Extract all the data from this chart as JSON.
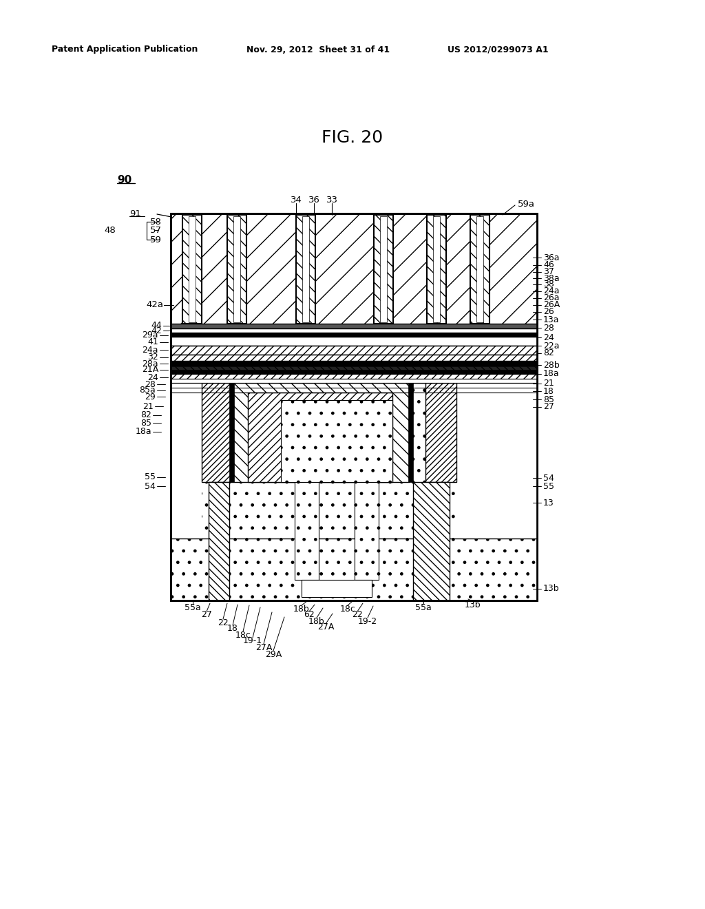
{
  "title": "FIG. 20",
  "header_left": "Patent Application Publication",
  "header_center": "Nov. 29, 2012  Sheet 31 of 41",
  "header_right": "US 2012/0299073 A1",
  "fig_label": "90",
  "background_color": "#ffffff",
  "text_color": "#000000",
  "ML": 248,
  "MR": 780,
  "MT": 310,
  "MB": 870
}
